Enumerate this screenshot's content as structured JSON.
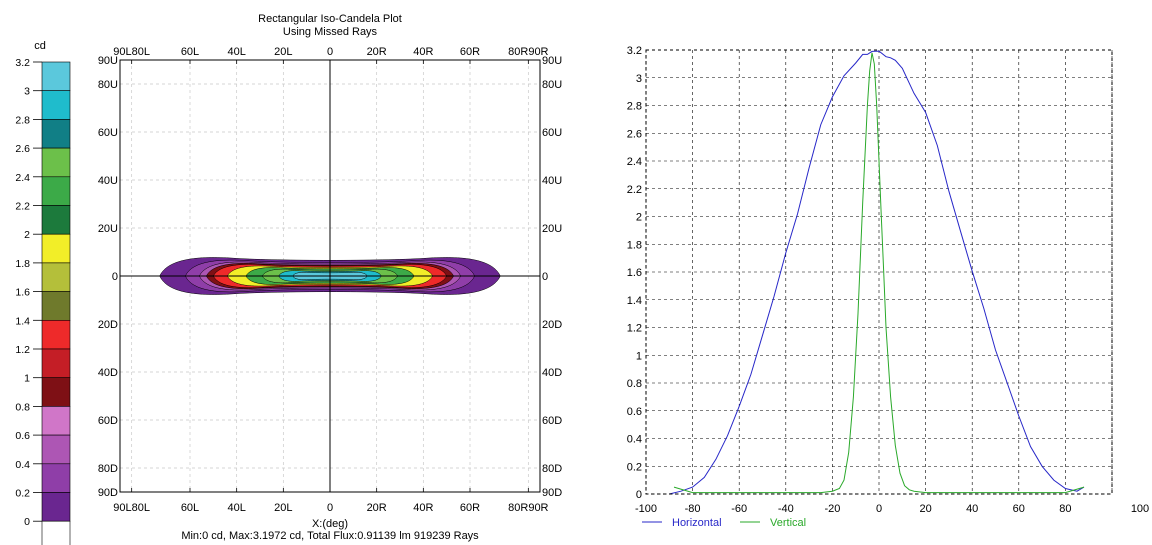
{
  "chart_data": [
    {
      "type": "heatmap",
      "title": "Rectangular Iso-Candela Plot",
      "subtitle": "Using Missed Rays",
      "xlabel": "X:(deg)",
      "footer": "Min:0 cd, Max:3.1972 cd, Total Flux:0.91139 lm 919239 Rays",
      "top_x_ticks": [
        "90L80L",
        "60L",
        "40L",
        "20L",
        "0",
        "20R",
        "40R",
        "60R",
        "80R90R"
      ],
      "bottom_x_ticks": [
        "90L80L",
        "60L",
        "40L",
        "20L",
        "0",
        "20R",
        "40R",
        "60R",
        "80R90R"
      ],
      "x_tick_values": [
        -85,
        -60,
        -40,
        -20,
        0,
        20,
        40,
        60,
        85
      ],
      "y_ticks_left": [
        "90U",
        "80U",
        "60U",
        "40U",
        "20U",
        "0",
        "20D",
        "40D",
        "60D",
        "80D",
        "90D"
      ],
      "y_ticks_right": [
        "90U",
        "80U",
        "60U",
        "40U",
        "20U",
        "0",
        "20D",
        "40D",
        "60D",
        "80D",
        "90D"
      ],
      "y_tick_values": [
        90,
        80,
        60,
        40,
        20,
        0,
        -20,
        -40,
        -60,
        -80,
        -90
      ],
      "xlim": [
        -90,
        90
      ],
      "ylim": [
        -90,
        90
      ],
      "grid": true,
      "colorbar": {
        "unit": "cd",
        "labels": [
          "3.2",
          "3",
          "2.8",
          "2.6",
          "2.4",
          "2.2",
          "2",
          "1.8",
          "1.6",
          "1.4",
          "1.2",
          "1",
          "0.8",
          "0.6",
          "0.4",
          "0.2",
          "0"
        ],
        "colors": [
          "#5bc8dc",
          "#1fbccc",
          "#117f86",
          "#6cc04a",
          "#3caa48",
          "#1c7a3c",
          "#f2ee28",
          "#b4bf3a",
          "#6f7a2c",
          "#ee2a2a",
          "#c41e26",
          "#7e1015",
          "#d076c8",
          "#ad56b4",
          "#8f3ea8",
          "#6a2690",
          "#ffffff"
        ]
      },
      "contours": [
        {
          "level": 0.2,
          "color": "#6a2690",
          "half_width": 73,
          "half_height": 7
        },
        {
          "level": 0.4,
          "color": "#8f3ea8",
          "half_width": 62,
          "half_height": 6
        },
        {
          "level": 0.6,
          "color": "#ad56b4",
          "half_width": 56,
          "half_height": 5.3
        },
        {
          "level": 0.8,
          "color": "#7e1015",
          "half_width": 53,
          "half_height": 4.8
        },
        {
          "level": 1.2,
          "color": "#ee2a2a",
          "half_width": 50,
          "half_height": 4.4
        },
        {
          "level": 1.8,
          "color": "#f2ee28",
          "half_width": 44,
          "half_height": 3.8
        },
        {
          "level": 2.2,
          "color": "#3caa48",
          "half_width": 36,
          "half_height": 3.2
        },
        {
          "level": 2.6,
          "color": "#6cc04a",
          "half_width": 29,
          "half_height": 2.6
        },
        {
          "level": 3.0,
          "color": "#1fbccc",
          "half_width": 22,
          "half_height": 2.0
        },
        {
          "level": 3.2,
          "color": "#5bc8dc",
          "half_width": 16,
          "half_height": 1.4
        }
      ]
    },
    {
      "type": "line",
      "xlim": [
        -100,
        100
      ],
      "ylim": [
        0,
        3.2
      ],
      "x_ticks": [
        "-100",
        "-80",
        "-60",
        "-40",
        "-20",
        "0",
        "20",
        "40",
        "60",
        "80",
        "100"
      ],
      "y_ticks": [
        "0",
        "0.2",
        "0.4",
        "0.6",
        "0.8",
        "1",
        "1.2",
        "1.4",
        "1.6",
        "1.8",
        "2",
        "2.2",
        "2.4",
        "2.6",
        "2.8",
        "3",
        "3.2"
      ],
      "grid": true,
      "legend": "bottom-left",
      "series": [
        {
          "name": "Horizontal",
          "color": "#2727c8",
          "x": [
            -90,
            -85,
            -80,
            -75,
            -70,
            -65,
            -60,
            -55,
            -50,
            -45,
            -40,
            -35,
            -30,
            -25,
            -20,
            -15,
            -10,
            -7,
            -5,
            -3,
            0,
            3,
            5,
            7,
            10,
            15,
            20,
            25,
            30,
            35,
            40,
            45,
            50,
            55,
            60,
            65,
            70,
            75,
            80,
            85,
            88
          ],
          "y": [
            0,
            0.02,
            0.05,
            0.12,
            0.25,
            0.42,
            0.62,
            0.88,
            1.15,
            1.42,
            1.72,
            2.03,
            2.35,
            2.65,
            2.88,
            3.02,
            3.1,
            3.15,
            3.18,
            3.19,
            3.18,
            3.17,
            3.15,
            3.12,
            3.05,
            2.9,
            2.75,
            2.5,
            2.2,
            1.9,
            1.6,
            1.32,
            1.05,
            0.8,
            0.55,
            0.36,
            0.2,
            0.1,
            0.04,
            0.02,
            0.05
          ]
        },
        {
          "name": "Vertical",
          "color": "#2aa92a",
          "x": [
            -88,
            -80,
            -60,
            -40,
            -25,
            -20,
            -17,
            -15,
            -13,
            -11,
            -9,
            -7,
            -5,
            -4,
            -3,
            -2,
            -1,
            0,
            1,
            2,
            3,
            5,
            7,
            9,
            11,
            13,
            15,
            20,
            40,
            60,
            80,
            88
          ],
          "y": [
            0.05,
            0.01,
            0.01,
            0.01,
            0.01,
            0.02,
            0.04,
            0.1,
            0.3,
            0.7,
            1.3,
            2.1,
            2.8,
            3.05,
            3.18,
            3.1,
            2.8,
            2.4,
            2,
            1.6,
            1.2,
            0.7,
            0.35,
            0.15,
            0.06,
            0.03,
            0.02,
            0.01,
            0.01,
            0.01,
            0.01,
            0.05
          ]
        }
      ]
    }
  ]
}
